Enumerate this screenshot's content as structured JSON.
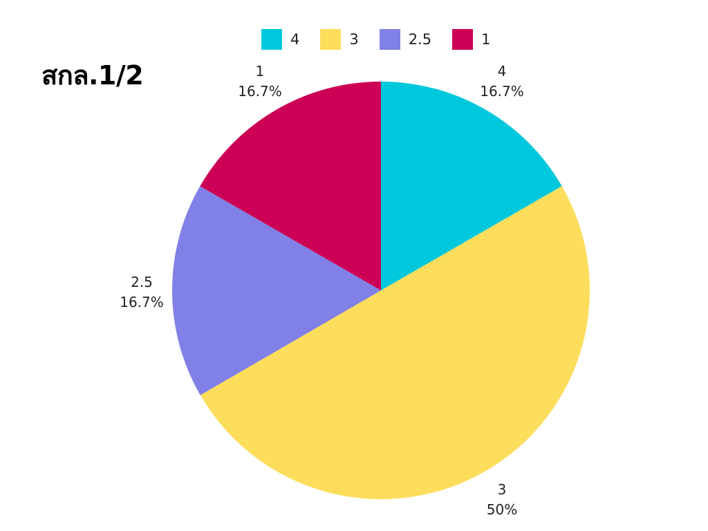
{
  "title": "สกล.1/2",
  "chart_data": {
    "type": "pie",
    "title": "สกล.1/2",
    "legend_position": "top",
    "start_angle": "12 o'clock",
    "direction": "clockwise",
    "slices": [
      {
        "name": "4",
        "value": 16.7,
        "label_percent": "16.7%",
        "color": "#00C8DC"
      },
      {
        "name": "3",
        "value": 50,
        "label_percent": "50%",
        "color": "#FDDD5C"
      },
      {
        "name": "2.5",
        "value": 16.7,
        "label_percent": "16.7%",
        "color": "#8080E6"
      },
      {
        "name": "1",
        "value": 16.7,
        "label_percent": "16.7%",
        "color": "#CC0055"
      }
    ]
  }
}
